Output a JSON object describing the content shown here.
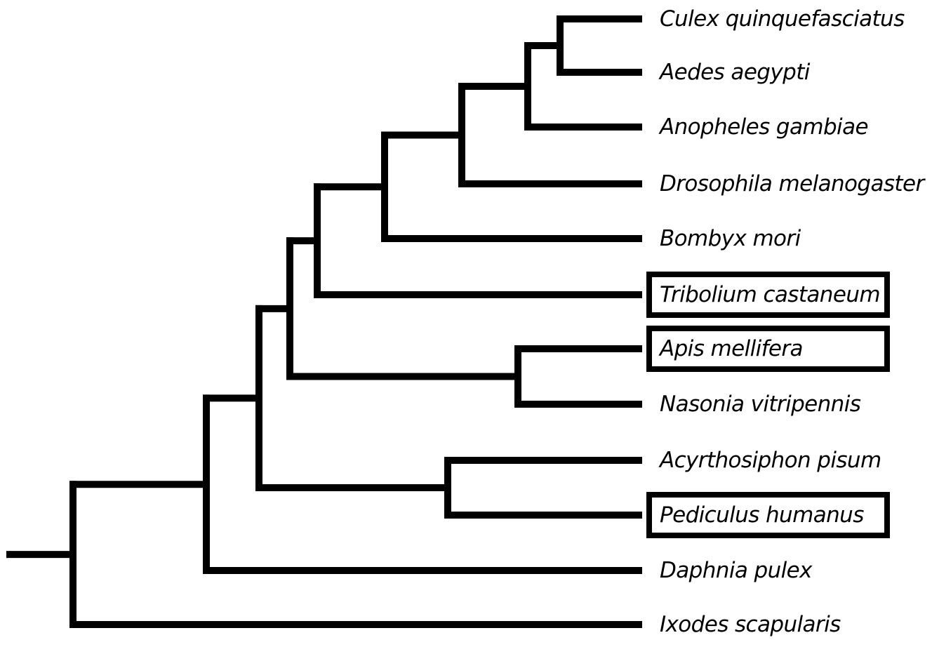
{
  "tree": {
    "leaves": [
      {
        "id": "culex",
        "label": "Culex quinquefasciatus",
        "highlighted": false
      },
      {
        "id": "aedes",
        "label": "Aedes aegypti",
        "highlighted": false
      },
      {
        "id": "anopheles",
        "label": "Anopheles gambiae",
        "highlighted": false
      },
      {
        "id": "drosophila",
        "label": "Drosophila melanogaster",
        "highlighted": false
      },
      {
        "id": "bombyx",
        "label": "Bombyx mori",
        "highlighted": false
      },
      {
        "id": "tribolium",
        "label": "Tribolium castaneum",
        "highlighted": true
      },
      {
        "id": "apis",
        "label": "Apis mellifera",
        "highlighted": true
      },
      {
        "id": "nasonia",
        "label": "Nasonia vitripennis",
        "highlighted": false
      },
      {
        "id": "acyrthosiphon",
        "label": "Acyrthosiphon pisum",
        "highlighted": false
      },
      {
        "id": "pediculus",
        "label": "Pediculus humanus",
        "highlighted": true
      },
      {
        "id": "daphnia",
        "label": "Daphnia pulex",
        "highlighted": false
      },
      {
        "id": "ixodes",
        "label": "Ixodes scapularis",
        "highlighted": false
      }
    ],
    "nodes": [
      {
        "id": "n_culex_aedes",
        "children": [
          "culex",
          "aedes"
        ]
      },
      {
        "id": "n_mosquitoes",
        "children": [
          "n_culex_aedes",
          "anopheles"
        ]
      },
      {
        "id": "n_diptera",
        "children": [
          "n_mosquitoes",
          "drosophila"
        ]
      },
      {
        "id": "n_lepido_diptera",
        "children": [
          "n_diptera",
          "bombyx"
        ]
      },
      {
        "id": "n_beetle_plus",
        "children": [
          "n_lepido_diptera",
          "tribolium"
        ]
      },
      {
        "id": "n_hymenoptera",
        "children": [
          "apis",
          "nasonia"
        ]
      },
      {
        "id": "n_holometabola",
        "children": [
          "n_beetle_plus",
          "n_hymenoptera"
        ]
      },
      {
        "id": "n_hemiptera_lice",
        "children": [
          "acyrthosiphon",
          "pediculus"
        ]
      },
      {
        "id": "n_insects",
        "children": [
          "n_holometabola",
          "n_hemiptera_lice"
        ]
      },
      {
        "id": "n_pancrustacea",
        "children": [
          "n_insects",
          "daphnia"
        ]
      },
      {
        "id": "n_root",
        "children": [
          "n_pancrustacea",
          "ixodes"
        ]
      }
    ]
  }
}
